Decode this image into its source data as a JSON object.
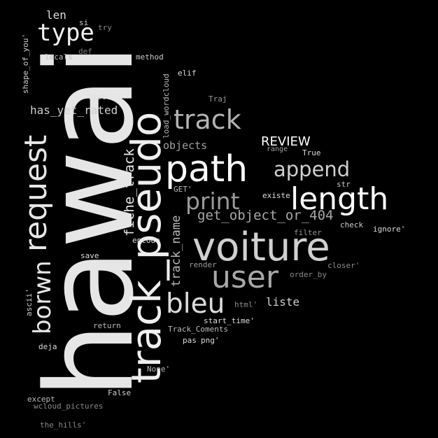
{
  "words": [
    {
      "name": "word-hawai",
      "text": "hawai",
      "color": "#e6e6e6"
    },
    {
      "name": "word-track-pseudo",
      "text": "track_pseudo",
      "color": "#efefef"
    },
    {
      "name": "word-request",
      "text": "request",
      "color": "#e6e6e6"
    },
    {
      "name": "word-borwn",
      "text": "borwn",
      "color": "#e6e6e6"
    },
    {
      "name": "word-fiche-track",
      "text": "fiche_track",
      "color": "#e6e6e6"
    },
    {
      "name": "word-track-name",
      "text": "track_name",
      "color": "#bbbbbb"
    },
    {
      "name": "word-shape-of-you",
      "text": "shape_of_you'",
      "color": "#cfcfcf"
    },
    {
      "name": "word-load-wordcloud",
      "text": "load_wordcloud",
      "color": "#bdbdbd"
    },
    {
      "name": "word-ascii",
      "text": "ascii'",
      "color": "#cfcfcf"
    },
    {
      "name": "word-type",
      "text": "type",
      "color": "#f0f0f0"
    },
    {
      "name": "word-len",
      "text": "len",
      "color": "#dddddd"
    },
    {
      "name": "word-si",
      "text": "si",
      "color": "#cccccc"
    },
    {
      "name": "word-try",
      "text": "try",
      "color": "#888888"
    },
    {
      "name": "word-def",
      "text": "def",
      "color": "#7a7a7a"
    },
    {
      "name": "word-locals",
      "text": "locals",
      "color": "#bdbdbd"
    },
    {
      "name": "word-method",
      "text": "method",
      "color": "#cccccc"
    },
    {
      "name": "word-elif",
      "text": "elif",
      "color": "#dddddd"
    },
    {
      "name": "word-list",
      "text": "list",
      "color": "#dddddd"
    },
    {
      "name": "word-traj",
      "text": "Traj",
      "color": "#9a9a9a"
    },
    {
      "name": "word-has-yet-rated",
      "text": "has_yet_rated",
      "color": "#cfcfcf"
    },
    {
      "name": "word-track",
      "text": "track",
      "color": "#b4b4b4"
    },
    {
      "name": "word-objects",
      "text": "objects",
      "color": "#a0a0a0"
    },
    {
      "name": "word-review",
      "text": "REVIEW",
      "color": "#ffffff"
    },
    {
      "name": "word-range",
      "text": "range",
      "color": "#a0a0a0"
    },
    {
      "name": "word-true",
      "text": "True",
      "color": "#dddddd"
    },
    {
      "name": "word-path",
      "text": "path",
      "color": "#ffffff"
    },
    {
      "name": "word-append",
      "text": "append",
      "color": "#cfcfcf"
    },
    {
      "name": "word-get",
      "text": "GET'",
      "color": "#bbbbbb"
    },
    {
      "name": "word-print",
      "text": "print",
      "color": "#9a9a9a"
    },
    {
      "name": "word-existe",
      "text": "existe",
      "color": "#dddddd"
    },
    {
      "name": "word-str",
      "text": "str",
      "color": "#cccccc"
    },
    {
      "name": "word-length",
      "text": "length",
      "color": "#ffffff"
    },
    {
      "name": "word-get-object-or-404",
      "text": "get_object_or_404",
      "color": "#a8a8a8"
    },
    {
      "name": "word-check",
      "text": "check",
      "color": "#cfcfcf"
    },
    {
      "name": "word-ignore",
      "text": "ignore'",
      "color": "#dddddd"
    },
    {
      "name": "word-filter",
      "text": "filter",
      "color": "#8f8f8f"
    },
    {
      "name": "word-encode",
      "text": "encode",
      "color": "#dddddd"
    },
    {
      "name": "word-voiture",
      "text": "voiture",
      "color": "#d0d0d0"
    },
    {
      "name": "word-save",
      "text": "save",
      "color": "#dddddd"
    },
    {
      "name": "word-render",
      "text": "render",
      "color": "#9a9a9a"
    },
    {
      "name": "word-closer",
      "text": "closer'",
      "color": "#8a8a8a"
    },
    {
      "name": "word-user",
      "text": "user",
      "color": "#a8a8a8"
    },
    {
      "name": "word-order-by",
      "text": "order_by",
      "color": "#8a8a8a"
    },
    {
      "name": "word-bleu",
      "text": "bleu",
      "color": "#dcdcdc"
    },
    {
      "name": "word-html",
      "text": "html'",
      "color": "#8a8a8a"
    },
    {
      "name": "word-liste",
      "text": "liste",
      "color": "#cfcfcf"
    },
    {
      "name": "word-return",
      "text": "return",
      "color": "#bbbbbb"
    },
    {
      "name": "word-start-time",
      "text": "start_time'",
      "color": "#dddddd"
    },
    {
      "name": "word-track-coments",
      "text": "Track_Coments",
      "color": "#bdbdbd"
    },
    {
      "name": "word-deja",
      "text": "deja",
      "color": "#dddddd"
    },
    {
      "name": "word-pas",
      "text": "pas",
      "color": "#dddddd"
    },
    {
      "name": "word-png",
      "text": "png'",
      "color": "#dddddd"
    },
    {
      "name": "word-none",
      "text": "None'",
      "color": "#bbbbbb"
    },
    {
      "name": "word-false",
      "text": "False",
      "color": "#cfcfcf"
    },
    {
      "name": "word-except",
      "text": "except",
      "color": "#bbbbbb"
    },
    {
      "name": "word-wcloud-pictures",
      "text": "wcloud_pictures",
      "color": "#8a8a8a"
    },
    {
      "name": "word-the-hills",
      "text": "the_hills'",
      "color": "#8a8a8a"
    }
  ]
}
